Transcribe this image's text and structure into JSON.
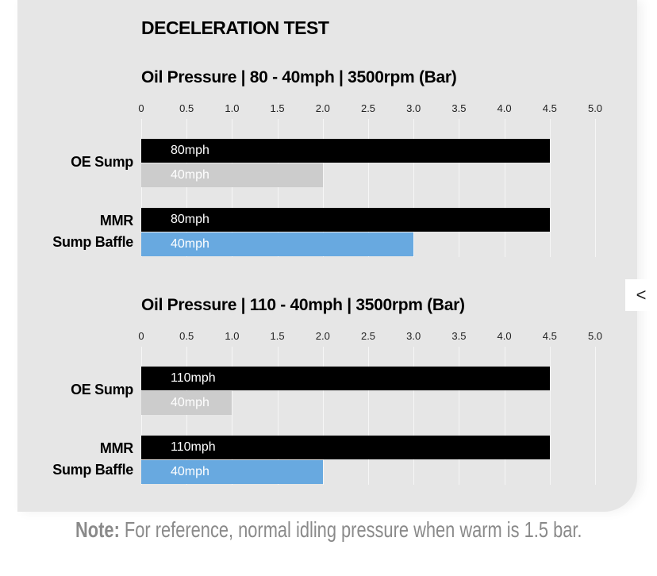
{
  "main_title": "DECELERATION TEST",
  "colors": {
    "high": "#000000",
    "oe_low": "#cccccc",
    "mmr_low": "#68a9e0",
    "panel": "#e6e6e6"
  },
  "chart_data": [
    {
      "type": "bar",
      "title": "Oil Pressure | 80 - 40mph | 3500rpm (Bar)",
      "xlim": [
        0,
        5.0
      ],
      "ticks": [
        "0",
        "0.5",
        "1.0",
        "1.5",
        "2.0",
        "2.5",
        "3.0",
        "3.5",
        "4.0",
        "4.5",
        "5.0"
      ],
      "categories": [
        "OE Sump",
        "MMR\nSump Baffle"
      ],
      "series": [
        {
          "name": "80mph",
          "values": [
            4.5,
            4.5
          ]
        },
        {
          "name": "40mph",
          "values": [
            2.0,
            3.0
          ]
        }
      ],
      "grid": true
    },
    {
      "type": "bar",
      "title": "Oil Pressure | 110 - 40mph | 3500rpm (Bar)",
      "xlim": [
        0,
        5.0
      ],
      "ticks": [
        "0",
        "0.5",
        "1.0",
        "1.5",
        "2.0",
        "2.5",
        "3.0",
        "3.5",
        "4.0",
        "4.5",
        "5.0"
      ],
      "categories": [
        "OE Sump",
        "MMR\nSump Baffle"
      ],
      "series": [
        {
          "name": "110mph",
          "values": [
            4.5,
            4.5
          ]
        },
        {
          "name": "40mph",
          "values": [
            1.0,
            2.0
          ]
        }
      ],
      "grid": true
    }
  ],
  "note": {
    "label": "Note:",
    "text": " For reference, normal idling pressure when warm is 1.5 bar."
  },
  "side_button": "<"
}
